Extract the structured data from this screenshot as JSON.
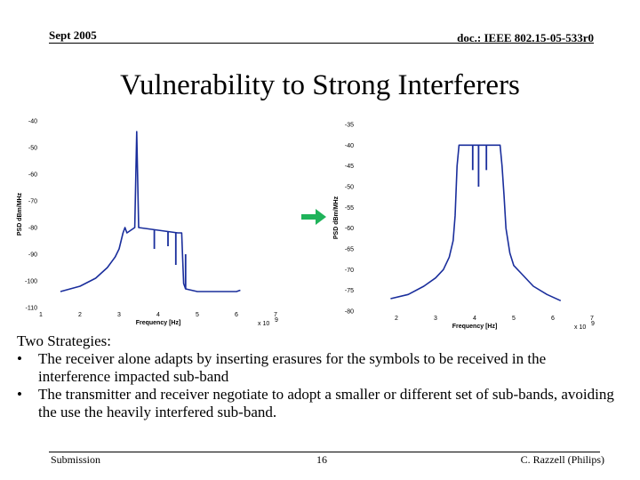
{
  "header": {
    "left": "Sept 2005",
    "right": "doc.: IEEE 802.15-05-533r0"
  },
  "title": "Vulnerability to Strong Interferers",
  "arrow_icon": "green-right-arrow",
  "arrow_color": "#1fb35a",
  "trace_color": "#1a2e9c",
  "chart_data": [
    {
      "type": "line",
      "xlabel": "Frequency [Hz]",
      "ylabel": "PSD dBm/MHz",
      "x_multiplier": "x 10",
      "x_multiplier_exp": "9",
      "xlim": [
        1,
        7
      ],
      "ylim": [
        -110,
        -40
      ],
      "xticks": [
        "1",
        "2",
        "3",
        "4",
        "5",
        "6",
        "7"
      ],
      "yticks": [
        "-40",
        "-50",
        "-60",
        "-70",
        "-80",
        "-90",
        "-100",
        "-110"
      ],
      "series": [
        {
          "x": [
            1.5,
            2.0,
            2.4,
            2.7,
            2.9,
            3.0,
            3.05,
            3.1,
            3.15,
            3.2,
            3.3,
            3.4,
            3.45,
            3.5,
            4.5,
            4.6,
            4.62,
            4.65,
            4.7,
            5.0,
            5.5,
            6.0,
            6.1
          ],
          "y": [
            -104,
            -102,
            -99,
            -95,
            -91,
            -88,
            -85,
            -82,
            -80,
            -82,
            -81,
            -80,
            -44,
            -80,
            -82,
            -82,
            -90,
            -101,
            -103,
            -104,
            -104,
            -104,
            -103.5
          ]
        }
      ],
      "notches": [
        {
          "x": 3.9,
          "depth": -88
        },
        {
          "x": 4.25,
          "depth": -87
        },
        {
          "x": 4.45,
          "depth": -94
        },
        {
          "x": 4.7,
          "depth": -90
        }
      ]
    },
    {
      "type": "line",
      "xlabel": "Frequency [Hz]",
      "ylabel": "PSD dBm/MHz",
      "x_multiplier": "x 10",
      "x_multiplier_exp": "9",
      "xlim": [
        1,
        7
      ],
      "ylim": [
        -80,
        -35
      ],
      "xticks": [
        "2",
        "3",
        "4",
        "5",
        "6",
        "7"
      ],
      "yticks": [
        "-35",
        "-40",
        "-45",
        "-50",
        "-55",
        "-60",
        "-65",
        "-70",
        "-75",
        "-80"
      ],
      "series": [
        {
          "x": [
            1.85,
            2.3,
            2.7,
            3.0,
            3.2,
            3.35,
            3.45,
            3.5,
            3.55,
            3.6,
            3.62,
            3.65,
            4.6,
            4.65,
            4.7,
            4.75,
            4.8,
            4.9,
            5.0,
            5.2,
            5.5,
            5.85,
            6.2
          ],
          "y": [
            -77,
            -76,
            -74,
            -72,
            -70,
            -67,
            -63,
            -57,
            -45,
            -40,
            -40,
            -40,
            -40,
            -40,
            -45,
            -52,
            -60,
            -66,
            -69,
            -71,
            -74,
            -76,
            -77.5
          ]
        }
      ],
      "notches": [
        {
          "x": 3.95,
          "depth": -46
        },
        {
          "x": 4.1,
          "depth": -50
        },
        {
          "x": 4.3,
          "depth": -46
        }
      ]
    }
  ],
  "body": {
    "heading": "Two Strategies:",
    "bullets": [
      "The receiver alone adapts by inserting erasures for the symbols to be received in the interference impacted sub-band",
      "The transmitter and receiver negotiate to adopt a smaller or different set of sub-bands, avoiding the use the heavily interfered sub-band."
    ],
    "bullet_glyph": "•"
  },
  "footer": {
    "left": "Submission",
    "page": "16",
    "right": "C. Razzell (Philips)"
  }
}
